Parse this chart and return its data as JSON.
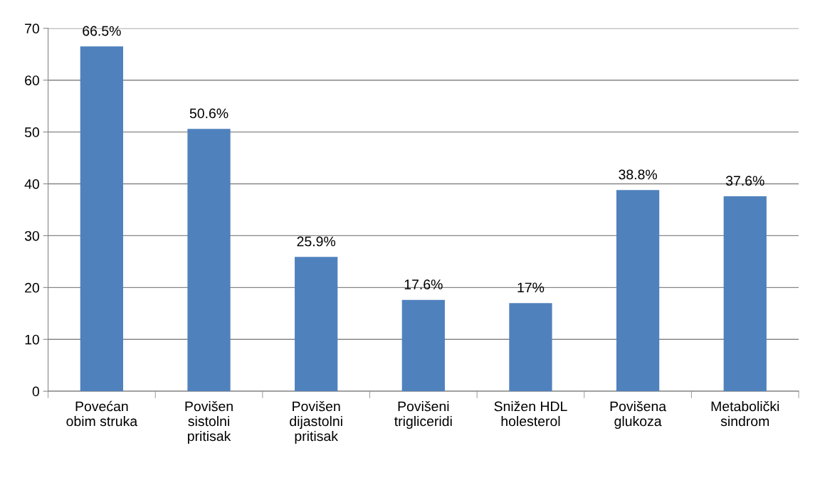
{
  "chart_data": {
    "type": "bar",
    "categories": [
      "Povećan\nobim struka",
      "Povišen\nsistolni\npritisak",
      "Povišen\ndijastolni\npritisak",
      "Povišeni\ntrigliceridi",
      "Snižen HDL\nholesterol",
      "Povišena\nglukoza",
      "Metabolički\nsindrom"
    ],
    "values": [
      66.5,
      50.6,
      25.9,
      17.6,
      17,
      38.8,
      37.6
    ],
    "value_labels": [
      "66.5%",
      "50.6%",
      "25.9%",
      "17.6%",
      "17%",
      "38.8%",
      "37.6%"
    ],
    "color": "#4f81bd",
    "ylim": [
      0,
      70
    ],
    "yticks": [
      0,
      10,
      20,
      30,
      40,
      50,
      60,
      70
    ],
    "grid": "y",
    "legend": false
  }
}
